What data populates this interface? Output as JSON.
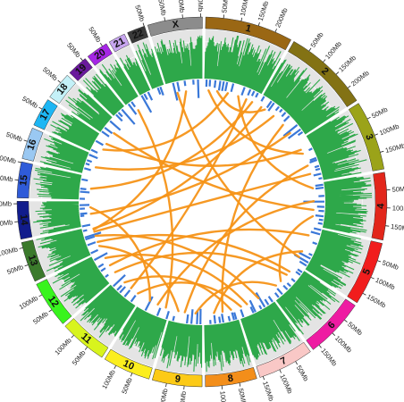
{
  "figure": {
    "type": "circos",
    "background_ring_color": "#e4e4e4",
    "coverage_color": "#2ea84a",
    "cnv_color": "#3a78d8",
    "link_color": "#f59418"
  },
  "chromosomes": [
    {
      "name": "1",
      "length_mb": 249,
      "color": "#9a6714",
      "ticks": [
        "50Mb",
        "100Mb",
        "150Mb",
        "200Mb"
      ]
    },
    {
      "name": "2",
      "length_mb": 243,
      "color": "#837214",
      "ticks": [
        "50Mb",
        "100Mb",
        "150Mb",
        "200Mb"
      ]
    },
    {
      "name": "3",
      "length_mb": 198,
      "color": "#9ba319",
      "ticks": [
        "50Mb",
        "100Mb",
        "150Mb"
      ]
    },
    {
      "name": "4",
      "length_mb": 191,
      "color": "#e2261b",
      "ticks": [
        "50Mb",
        "100Mb",
        "150Mb"
      ]
    },
    {
      "name": "5",
      "length_mb": 181,
      "color": "#f11d1d",
      "ticks": [
        "50Mb",
        "100Mb",
        "150Mb"
      ]
    },
    {
      "name": "6",
      "length_mb": 171,
      "color": "#ee1ba2",
      "ticks": [
        "50Mb",
        "100Mb",
        "150Mb"
      ]
    },
    {
      "name": "7",
      "length_mb": 159,
      "color": "#f9c8c6",
      "ticks": [
        "50Mb",
        "100Mb",
        "150Mb"
      ]
    },
    {
      "name": "8",
      "length_mb": 146,
      "color": "#f38e1a",
      "ticks": [
        "50Mb",
        "100Mb"
      ]
    },
    {
      "name": "9",
      "length_mb": 141,
      "color": "#fcca16",
      "ticks": [
        "50Mb",
        "100Mb"
      ]
    },
    {
      "name": "10",
      "length_mb": 136,
      "color": "#fbee1e",
      "ticks": [
        "50Mb",
        "100Mb"
      ]
    },
    {
      "name": "11",
      "length_mb": 135,
      "color": "#d8f41d",
      "ticks": [
        "50Mb",
        "100Mb"
      ]
    },
    {
      "name": "12",
      "length_mb": 133,
      "color": "#38f41d",
      "ticks": [
        "50Mb",
        "100Mb"
      ]
    },
    {
      "name": "13",
      "length_mb": 115,
      "color": "#3b7a2c",
      "ticks": [
        "50Mb",
        "100Mb"
      ]
    },
    {
      "name": "14",
      "length_mb": 107,
      "color": "#111c8c",
      "ticks": [
        "50Mb",
        "100Mb"
      ]
    },
    {
      "name": "15",
      "length_mb": 102,
      "color": "#2f5bd8",
      "ticks": [
        "50Mb",
        "100Mb"
      ]
    },
    {
      "name": "16",
      "length_mb": 90,
      "color": "#9ac8f2",
      "ticks": [
        "50Mb"
      ]
    },
    {
      "name": "17",
      "length_mb": 81,
      "color": "#1db6f4",
      "ticks": [
        "50Mb"
      ]
    },
    {
      "name": "18",
      "length_mb": 78,
      "color": "#c4f1f8",
      "ticks": [
        "50Mb"
      ]
    },
    {
      "name": "19",
      "length_mb": 59,
      "color": "#6a1a9c",
      "ticks": [
        "50Mb"
      ]
    },
    {
      "name": "20",
      "length_mb": 63,
      "color": "#a526e5",
      "ticks": [
        "50Mb"
      ]
    },
    {
      "name": "21",
      "length_mb": 48,
      "color": "#c8a6f0",
      "ticks": []
    },
    {
      "name": "22",
      "length_mb": 51,
      "color": "#3a3a3a",
      "ticks": [
        "50Mb"
      ]
    },
    {
      "name": "X",
      "length_mb": 155,
      "color": "#8c8c8c",
      "ticks": [
        "50Mb",
        "100Mb",
        "150Mb"
      ]
    }
  ],
  "links": [
    {
      "a": [
        "1",
        20
      ],
      "b": [
        "3",
        60
      ]
    },
    {
      "a": [
        "1",
        60
      ],
      "b": [
        "2",
        40
      ]
    },
    {
      "a": [
        "1",
        110
      ],
      "b": [
        "17",
        30
      ]
    },
    {
      "a": [
        "1",
        160
      ],
      "b": [
        "4",
        20
      ]
    },
    {
      "a": [
        "1",
        200
      ],
      "b": [
        "11",
        60
      ]
    },
    {
      "a": [
        "2",
        90
      ],
      "b": [
        "16",
        40
      ]
    },
    {
      "a": [
        "2",
        150
      ],
      "b": [
        "8",
        60
      ]
    },
    {
      "a": [
        "2",
        200
      ],
      "b": [
        "14",
        50
      ]
    },
    {
      "a": [
        "3",
        40
      ],
      "b": [
        "17",
        60
      ]
    },
    {
      "a": [
        "3",
        120
      ],
      "b": [
        "9",
        80
      ]
    },
    {
      "a": [
        "3",
        160
      ],
      "b": [
        "13",
        90
      ]
    },
    {
      "a": [
        "4",
        80
      ],
      "b": [
        "10",
        60
      ]
    },
    {
      "a": [
        "4",
        150
      ],
      "b": [
        "6",
        100
      ]
    },
    {
      "a": [
        "5",
        40
      ],
      "b": [
        "12",
        60
      ]
    },
    {
      "a": [
        "5",
        120
      ],
      "b": [
        "8",
        100
      ]
    },
    {
      "a": [
        "6",
        40
      ],
      "b": [
        "13",
        40
      ]
    },
    {
      "a": [
        "6",
        130
      ],
      "b": [
        "9",
        30
      ]
    },
    {
      "a": [
        "7",
        50
      ],
      "b": [
        "13",
        70
      ]
    },
    {
      "a": [
        "7",
        110
      ],
      "b": [
        "12",
        100
      ]
    },
    {
      "a": [
        "8",
        20
      ],
      "b": [
        "11",
        100
      ]
    },
    {
      "a": [
        "9",
        110
      ],
      "b": [
        "13",
        20
      ]
    },
    {
      "a": [
        "10",
        100
      ],
      "b": [
        "14",
        80
      ]
    },
    {
      "a": [
        "11",
        20
      ],
      "b": [
        "7",
        140
      ]
    },
    {
      "a": [
        "12",
        20
      ],
      "b": [
        "6",
        60
      ]
    },
    {
      "a": [
        "13",
        100
      ],
      "b": [
        "X",
        80
      ]
    },
    {
      "a": [
        "15",
        50
      ],
      "b": [
        "1",
        230
      ]
    },
    {
      "a": [
        "X",
        40
      ],
      "b": [
        "5",
        150
      ]
    },
    {
      "a": [
        "18",
        30
      ],
      "b": [
        "4",
        120
      ]
    },
    {
      "a": [
        "20",
        30
      ],
      "b": [
        "10",
        20
      ]
    },
    {
      "a": [
        "2",
        20
      ],
      "b": [
        "13",
        105
      ]
    }
  ]
}
